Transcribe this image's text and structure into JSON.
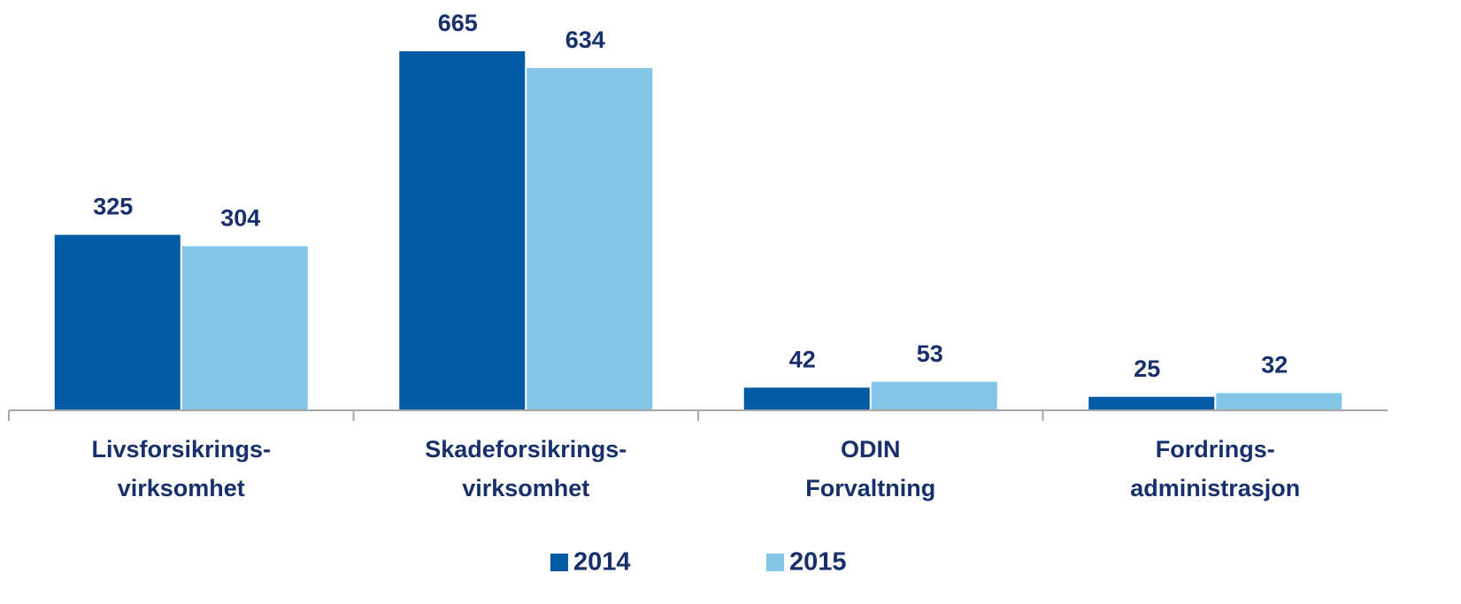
{
  "chart_data": {
    "type": "bar",
    "categories": [
      [
        "Livsforsikrings-",
        "virksomhet"
      ],
      [
        "Skadeforsikrings-",
        "virksomhet"
      ],
      [
        "ODIN",
        "Forvaltning"
      ],
      [
        "Fordrings-",
        "administrasjon"
      ]
    ],
    "series": [
      {
        "name": "2014",
        "color": "#005aa5",
        "values": [
          325,
          665,
          42,
          25
        ]
      },
      {
        "name": "2015",
        "color": "#83c6e8",
        "values": [
          304,
          634,
          53,
          32
        ]
      }
    ],
    "legend": "bottom"
  }
}
